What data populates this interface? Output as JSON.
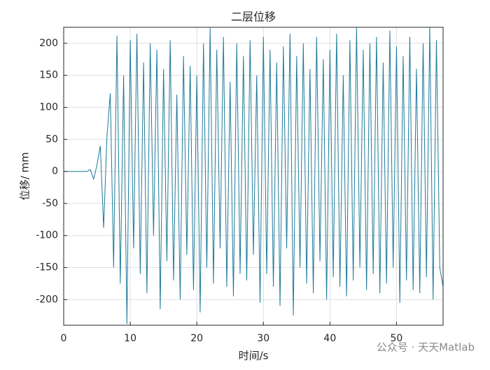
{
  "chart_data": {
    "type": "line",
    "title": "二层位移",
    "xlabel": "时间/s",
    "ylabel": "位移/ mm",
    "watermark": "公众号 · 天天Matlab",
    "color": "#1f7a99",
    "grid": true,
    "xlim": [
      0,
      57
    ],
    "ylim": [
      -240,
      225
    ],
    "xticks": [
      0,
      10,
      20,
      30,
      40,
      50
    ],
    "yticks": [
      -200,
      -150,
      -100,
      -50,
      0,
      50,
      100,
      150,
      200
    ],
    "x": [
      0,
      0.5,
      1,
      1.5,
      2,
      2.5,
      3,
      3.5,
      4,
      4.5,
      5,
      5.5,
      6,
      6.5,
      7,
      7.5,
      8,
      8.5,
      9,
      9.5,
      10,
      10.5,
      11,
      11.5,
      12,
      12.5,
      13,
      13.5,
      14,
      14.5,
      15,
      15.5,
      16,
      16.5,
      17,
      17.5,
      18,
      18.5,
      19,
      19.5,
      20,
      20.5,
      21,
      21.5,
      22,
      22.5,
      23,
      23.5,
      24,
      24.5,
      25,
      25.5,
      26,
      26.5,
      27,
      27.5,
      28,
      28.5,
      29,
      29.5,
      30,
      30.5,
      31,
      31.5,
      32,
      32.5,
      33,
      33.5,
      34,
      34.5,
      35,
      35.5,
      36,
      36.5,
      37,
      37.5,
      38,
      38.5,
      39,
      39.5,
      40,
      40.5,
      41,
      41.5,
      42,
      42.5,
      43,
      43.5,
      44,
      44.5,
      45,
      45.5,
      46,
      46.5,
      47,
      47.5,
      48,
      48.5,
      49,
      49.5,
      50,
      50.5,
      51,
      51.5,
      52,
      52.5,
      53,
      53.5,
      54,
      54.5,
      55,
      55.5,
      56,
      56.5,
      57
    ],
    "values": [
      0,
      0,
      0,
      0,
      0,
      0,
      0,
      0,
      3,
      -12,
      10,
      40,
      -88,
      55,
      122,
      -150,
      212,
      -175,
      150,
      -238,
      205,
      -120,
      215,
      -160,
      170,
      -190,
      200,
      -100,
      190,
      -215,
      160,
      -140,
      205,
      -170,
      120,
      -200,
      180,
      -130,
      165,
      -185,
      150,
      -220,
      200,
      -150,
      224,
      -175,
      190,
      -120,
      210,
      -180,
      140,
      -195,
      200,
      -160,
      180,
      -170,
      205,
      -130,
      150,
      -205,
      210,
      -160,
      190,
      -180,
      170,
      -210,
      195,
      -120,
      215,
      -225,
      180,
      -150,
      200,
      -175,
      160,
      -190,
      210,
      -140,
      175,
      -200,
      190,
      -165,
      215,
      -180,
      150,
      -195,
      205,
      -170,
      225,
      -150,
      190,
      -185,
      200,
      -160,
      210,
      -190,
      170,
      -175,
      220,
      -150,
      195,
      -205,
      180,
      -170,
      210,
      -185,
      160,
      -190,
      200,
      -165,
      225,
      -200,
      205,
      -150,
      -180
    ]
  }
}
